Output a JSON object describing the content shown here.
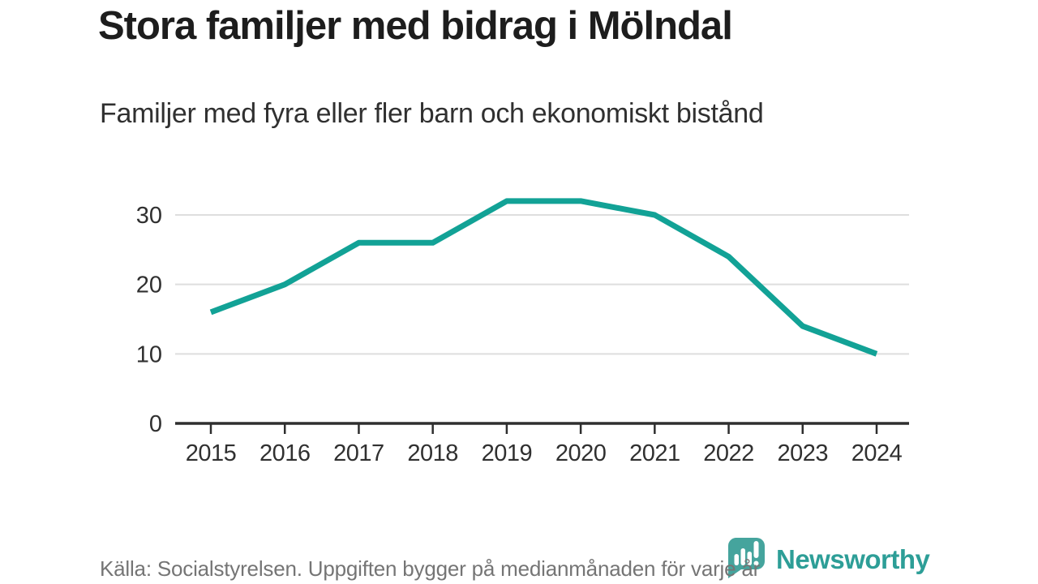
{
  "chart_data": {
    "type": "line",
    "title": "Stora familjer med bidrag i Mölndal",
    "subtitle": "Familjer med fyra eller fler barn och ekonomiskt bistånd",
    "categories": [
      "2015",
      "2016",
      "2017",
      "2018",
      "2019",
      "2020",
      "2021",
      "2022",
      "2023",
      "2024"
    ],
    "values": [
      16,
      20,
      26,
      26,
      32,
      32,
      30,
      24,
      14,
      10
    ],
    "xlabel": "",
    "ylabel": "",
    "ylim": [
      0,
      35
    ],
    "yticks": [
      0,
      10,
      20,
      30
    ],
    "grid": "horizontal",
    "legend": "none",
    "line_color": "#12a296",
    "axis_color": "#2e2e2e",
    "gridline_color": "#dedede",
    "tick_label_color": "#303030"
  },
  "footer": {
    "source": "Källa: Socialstyrelsen. Uppgiften bygger på medianmånaden för varje år",
    "logo": {
      "text": "Newsworthy",
      "icon": "newsworthy-bubble-barchart-icon",
      "icon_color": "#45a49d",
      "text_color": "#2d9e97"
    }
  }
}
